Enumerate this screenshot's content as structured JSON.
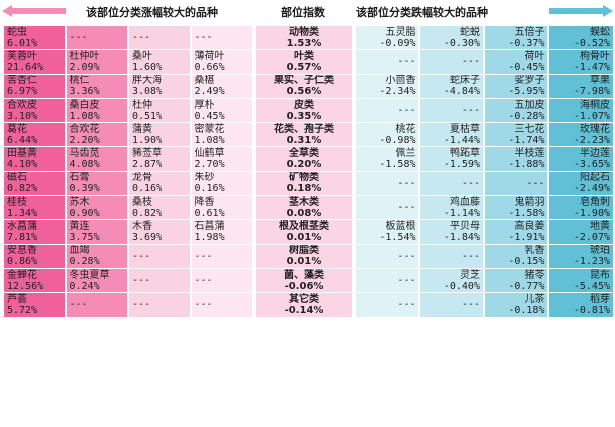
{
  "header": {
    "left_title": "该部位分类涨幅较大的品种",
    "mid_title": "部位指数",
    "right_title": "该部位分类跌幅较大的品种"
  },
  "chart_data": {
    "type": "table",
    "rows": [
      {
        "gainers": [
          [
            "蛇虫",
            "6.01%"
          ],
          [
            "---",
            ""
          ],
          [
            "---",
            ""
          ],
          [
            "---",
            ""
          ]
        ],
        "category": "动物类",
        "index": "1.53%",
        "losers": [
          [
            "五灵脂",
            "-0.09%"
          ],
          [
            "蛇蜕",
            "-0.30%"
          ],
          [
            "五倍子",
            "-0.37%"
          ],
          [
            "蜈蚣",
            "-0.52%"
          ]
        ]
      },
      {
        "gainers": [
          [
            "芙蓉叶",
            "21.64%"
          ],
          [
            "杜仲叶",
            "2.09%"
          ],
          [
            "桑叶",
            "1.60%"
          ],
          [
            "薄荷叶",
            "0.66%"
          ]
        ],
        "category": "叶类",
        "index": "0.57%",
        "losers": [
          [
            "---",
            ""
          ],
          [
            "---",
            ""
          ],
          [
            "荷叶",
            "-0.45%"
          ],
          [
            "枸骨叶",
            "-1.47%"
          ]
        ]
      },
      {
        "gainers": [
          [
            "苦杏仁",
            "6.97%"
          ],
          [
            "桃仁",
            "3.36%"
          ],
          [
            "胖大海",
            "3.08%"
          ],
          [
            "桑椹",
            "2.49%"
          ]
        ],
        "category": "果实、子仁类",
        "index": "0.56%",
        "losers": [
          [
            "小茴香",
            "-2.34%"
          ],
          [
            "蛇床子",
            "-4.84%"
          ],
          [
            "娑罗子",
            "-5.95%"
          ],
          [
            "草果",
            "-7.98%"
          ]
        ]
      },
      {
        "gainers": [
          [
            "合欢皮",
            "3.10%"
          ],
          [
            "桑白皮",
            "1.08%"
          ],
          [
            "杜仲",
            "0.51%"
          ],
          [
            "厚朴",
            "0.45%"
          ]
        ],
        "category": "皮类",
        "index": "0.35%",
        "losers": [
          [
            "---",
            ""
          ],
          [
            "---",
            ""
          ],
          [
            "五加皮",
            "-0.28%"
          ],
          [
            "海桐皮",
            "-1.07%"
          ]
        ]
      },
      {
        "gainers": [
          [
            "葛花",
            "6.44%"
          ],
          [
            "合欢花",
            "2.20%"
          ],
          [
            "蒲黄",
            "1.90%"
          ],
          [
            "密蒙花",
            "1.08%"
          ]
        ],
        "category": "花类、孢子类",
        "index": "0.31%",
        "losers": [
          [
            "桃花",
            "-0.98%"
          ],
          [
            "夏枯草",
            "-1.44%"
          ],
          [
            "三七花",
            "-1.74%"
          ],
          [
            "玫瑰花",
            "-2.23%"
          ]
        ]
      },
      {
        "gainers": [
          [
            "田基黄",
            "4.10%"
          ],
          [
            "马齿苋",
            "4.08%"
          ],
          [
            "豨莶草",
            "2.87%"
          ],
          [
            "仙鹤草",
            "2.70%"
          ]
        ],
        "category": "全草类",
        "index": "0.20%",
        "losers": [
          [
            "佩兰",
            "-1.58%"
          ],
          [
            "鸭跖草",
            "-1.59%"
          ],
          [
            "半枝莲",
            "-1.88%"
          ],
          [
            "半边莲",
            "-3.65%"
          ]
        ]
      },
      {
        "gainers": [
          [
            "磁石",
            "0.82%"
          ],
          [
            "石膏",
            "0.39%"
          ],
          [
            "龙骨",
            "0.16%"
          ],
          [
            "朱砂",
            "0.16%"
          ]
        ],
        "category": "矿物类",
        "index": "0.18%",
        "losers": [
          [
            "---",
            ""
          ],
          [
            "---",
            ""
          ],
          [
            "---",
            ""
          ],
          [
            "阳起石",
            "-2.49%"
          ]
        ]
      },
      {
        "gainers": [
          [
            "桂枝",
            "1.34%"
          ],
          [
            "苏木",
            "0.90%"
          ],
          [
            "桑枝",
            "0.82%"
          ],
          [
            "降香",
            "0.61%"
          ]
        ],
        "category": "茎木类",
        "index": "0.08%",
        "losers": [
          [
            "---",
            ""
          ],
          [
            "鸡血藤",
            "-1.14%"
          ],
          [
            "鬼箭羽",
            "-1.58%"
          ],
          [
            "皂角刺",
            "-1.90%"
          ]
        ]
      },
      {
        "gainers": [
          [
            "水菖蒲",
            "7.81%"
          ],
          [
            "黄连",
            "3.75%"
          ],
          [
            "木香",
            "3.69%"
          ],
          [
            "石菖蒲",
            "1.98%"
          ]
        ],
        "category": "根及根茎类",
        "index": "0.01%",
        "losers": [
          [
            "板蓝根",
            "-1.54%"
          ],
          [
            "平贝母",
            "-1.84%"
          ],
          [
            "高良姜",
            "-1.91%"
          ],
          [
            "地黄",
            "-2.07%"
          ]
        ]
      },
      {
        "gainers": [
          [
            "安息香",
            "0.86%"
          ],
          [
            "血竭",
            "0.28%"
          ],
          [
            "---",
            ""
          ],
          [
            "---",
            ""
          ]
        ],
        "category": "树脂类",
        "index": "0.01%",
        "losers": [
          [
            "---",
            ""
          ],
          [
            "---",
            ""
          ],
          [
            "乳香",
            "-0.15%"
          ],
          [
            "琥珀",
            "-1.23%"
          ]
        ]
      },
      {
        "gainers": [
          [
            "金蝉花",
            "12.56%"
          ],
          [
            "冬虫夏草",
            "0.24%"
          ],
          [
            "---",
            ""
          ],
          [
            "---",
            ""
          ]
        ],
        "category": "菌、藻类",
        "index": "-0.06%",
        "losers": [
          [
            "---",
            ""
          ],
          [
            "灵芝",
            "-0.40%"
          ],
          [
            "猪苓",
            "-0.77%"
          ],
          [
            "昆布",
            "-5.45%"
          ]
        ]
      },
      {
        "gainers": [
          [
            "芦荟",
            "5.72%"
          ],
          [
            "---",
            ""
          ],
          [
            "---",
            ""
          ],
          [
            "---",
            ""
          ]
        ],
        "category": "其它类",
        "index": "-0.14%",
        "losers": [
          [
            "---",
            ""
          ],
          [
            "---",
            ""
          ],
          [
            "儿茶",
            "-0.18%"
          ],
          [
            "稻芽",
            "-0.81%"
          ]
        ]
      }
    ]
  },
  "colors": {
    "gainer_shades": [
      "#f0609a",
      "#f48cb6",
      "#fad3e2",
      "#fde6ef"
    ],
    "index_bg": "#fbd5e4",
    "loser_shades": [
      "#dff2f6",
      "#c6e8f0",
      "#9fd8e6",
      "#5fc0d6"
    ],
    "left_arrow": "#f48cb6",
    "right_arrow": "#5fc0d6"
  }
}
